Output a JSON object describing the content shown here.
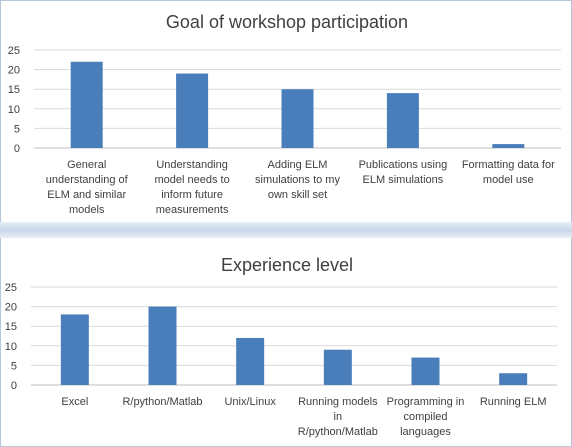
{
  "chart_data": [
    {
      "type": "bar",
      "title": "Goal of workshop participation",
      "categories": [
        [
          "General",
          "understanding of",
          "ELM and similar",
          "models"
        ],
        [
          "Understanding",
          "model needs to",
          "inform future",
          "measurements"
        ],
        [
          "Adding ELM",
          "simulations to my",
          "own skill set"
        ],
        [
          "Publications using",
          "ELM simulations"
        ],
        [
          "Formatting data for",
          "model use"
        ]
      ],
      "values": [
        22,
        19,
        15,
        14,
        1
      ],
      "ylim": [
        0,
        25
      ],
      "yticks": [
        0,
        5,
        10,
        15,
        20,
        25
      ],
      "grid": true,
      "color": "#4a7ebb"
    },
    {
      "type": "bar",
      "title": "Experience level",
      "categories": [
        [
          "Excel"
        ],
        [
          "R/python/Matlab"
        ],
        [
          "Unix/Linux"
        ],
        [
          "Running models",
          "in",
          "R/python/Matlab"
        ],
        [
          "Programming in",
          "compiled",
          "languages"
        ],
        [
          "Running ELM"
        ]
      ],
      "values": [
        18,
        20,
        12,
        9,
        7,
        3
      ],
      "ylim": [
        0,
        25
      ],
      "yticks": [
        0,
        5,
        10,
        15,
        20,
        25
      ],
      "grid": true,
      "color": "#4a7ebb"
    }
  ]
}
